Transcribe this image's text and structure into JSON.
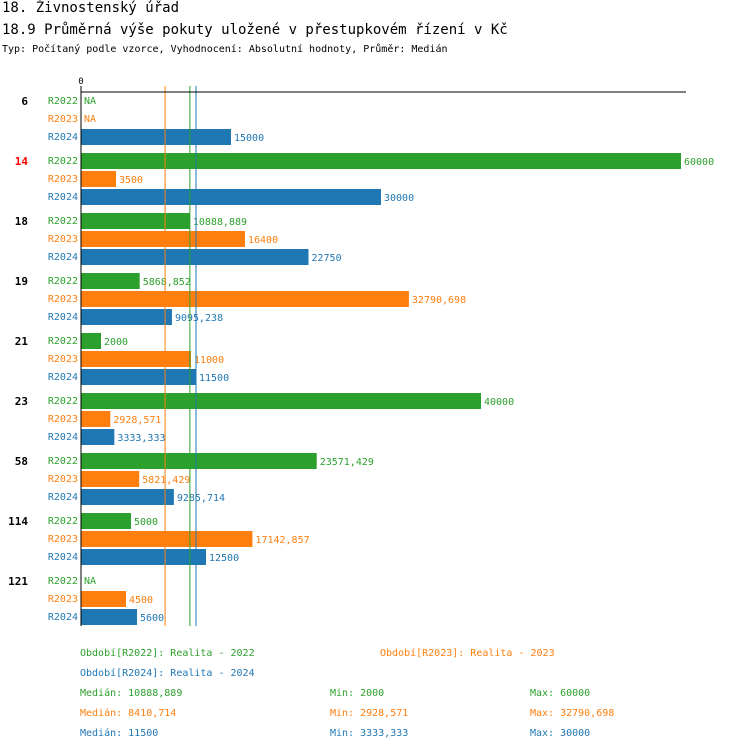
{
  "header": {
    "title": "18. Živnostenský úřad",
    "subtitle": "18.9 Průměrná výše pokuty uložené v přestupkovém řízení v Kč",
    "type_line": "Typ: Počítaný podle vzorce, Vyhodnocení: Absolutní hodnoty, Průměr: Medián"
  },
  "colors": {
    "R2022": "#2ca02c",
    "R2023": "#ff7f0e",
    "R2024": "#1f77b4",
    "highlight": "#ff0000",
    "text": "#000000"
  },
  "chart_data": {
    "type": "bar",
    "orientation": "horizontal",
    "axis_zero_label": "0",
    "xlim": [
      0,
      60000
    ],
    "na_label": "NA",
    "series_names": [
      "R2022",
      "R2023",
      "R2024"
    ],
    "groups": [
      {
        "label": "6",
        "highlight": false,
        "values": [
          null,
          null,
          15000
        ],
        "labels": [
          "NA",
          "NA",
          "15000"
        ]
      },
      {
        "label": "14",
        "highlight": true,
        "values": [
          60000,
          3500,
          30000
        ],
        "labels": [
          "60000",
          "3500",
          "30000"
        ]
      },
      {
        "label": "18",
        "highlight": false,
        "values": [
          10888.889,
          16400,
          22750
        ],
        "labels": [
          "10888,889",
          "16400",
          "22750"
        ]
      },
      {
        "label": "19",
        "highlight": false,
        "values": [
          5868.852,
          32790.698,
          9095.238
        ],
        "labels": [
          "5868,852",
          "32790,698",
          "9095,238"
        ]
      },
      {
        "label": "21",
        "highlight": false,
        "values": [
          2000,
          11000,
          11500
        ],
        "labels": [
          "2000",
          "11000",
          "11500"
        ]
      },
      {
        "label": "23",
        "highlight": false,
        "values": [
          40000,
          2928.571,
          3333.333
        ],
        "labels": [
          "40000",
          "2928,571",
          "3333,333"
        ]
      },
      {
        "label": "58",
        "highlight": false,
        "values": [
          23571.429,
          5821.429,
          9285.714
        ],
        "labels": [
          "23571,429",
          "5821,429",
          "9285,714"
        ]
      },
      {
        "label": "114",
        "highlight": false,
        "values": [
          5000,
          17142.857,
          12500
        ],
        "labels": [
          "5000",
          "17142,857",
          "12500"
        ]
      },
      {
        "label": "121",
        "highlight": false,
        "values": [
          null,
          4500,
          5600
        ],
        "labels": [
          "NA",
          "4500",
          "5600"
        ]
      }
    ],
    "median_lines": [
      {
        "series": "R2022",
        "value": 10888.889
      },
      {
        "series": "R2023",
        "value": 8410.714
      },
      {
        "series": "R2024",
        "value": 11500
      }
    ]
  },
  "legend": {
    "periods": [
      {
        "series": "R2022",
        "text": "Období[R2022]: Realita - 2022"
      },
      {
        "series": "R2023",
        "text": "Období[R2023]: Realita - 2023"
      },
      {
        "series": "R2024",
        "text": "Období[R2024]: Realita - 2024"
      }
    ],
    "stats": [
      {
        "series": "R2022",
        "median": "Medián: 10888,889",
        "min": "Min: 2000",
        "max": "Max: 60000"
      },
      {
        "series": "R2023",
        "median": "Medián: 8410,714",
        "min": "Min: 2928,571",
        "max": "Max: 32790,698"
      },
      {
        "series": "R2024",
        "median": "Medián: 11500",
        "min": "Min: 3333,333",
        "max": "Max: 30000"
      }
    ]
  }
}
